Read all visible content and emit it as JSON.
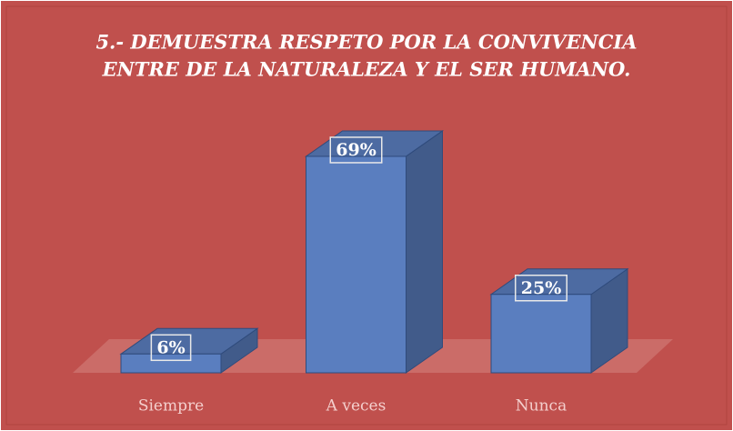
{
  "chart_data": {
    "type": "bar3d",
    "title": [
      "5.- DEMUESTRA RESPETO POR LA CONVIVENCIA",
      "ENTRE DE LA NATURALEZA Y EL SER HUMANO."
    ],
    "categories": [
      "Siempre",
      "A veces",
      "Nunca"
    ],
    "values": [
      6,
      69,
      25
    ],
    "value_labels": [
      "6%",
      "69%",
      "25%"
    ],
    "color": "#5a7ebf"
  }
}
